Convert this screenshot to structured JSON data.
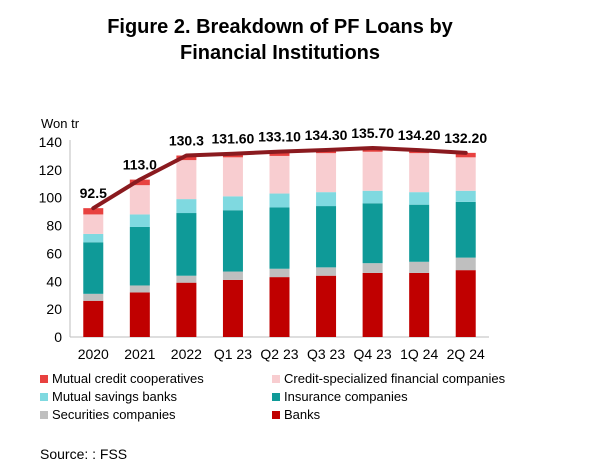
{
  "figure": {
    "title_line1": "Figure 2. Breakdown of PF Loans by",
    "title_line2": "Financial Institutions",
    "source": "Source: : FSS"
  },
  "colors": {
    "mutual_credit": "#e8413f",
    "credit_specialized": "#f8cdd0",
    "mutual_savings": "#7fd9e0",
    "insurance": "#0f9a98",
    "securities": "#bfbfbf",
    "banks": "#c00000",
    "total_line": "#8a1a1f"
  },
  "chart_data": {
    "type": "bar",
    "stacked": true,
    "ylabel": "Won tr",
    "ylim": [
      0,
      140
    ],
    "yticks": [
      0,
      20,
      40,
      60,
      80,
      100,
      120,
      140
    ],
    "categories": [
      "2020",
      "2021",
      "2022",
      "Q1 23",
      "Q2 23",
      "Q3 23",
      "Q4 23",
      "1Q 24",
      "2Q 24"
    ],
    "series": [
      {
        "name": "Banks",
        "key": "banks",
        "values": [
          26,
          32,
          39,
          41,
          43,
          44,
          46,
          46,
          48
        ]
      },
      {
        "name": "Securities companies",
        "key": "securities",
        "values": [
          5,
          5,
          5,
          6,
          6,
          6,
          7,
          8,
          9
        ]
      },
      {
        "name": "Insurance companies",
        "key": "insurance",
        "values": [
          37,
          42,
          45,
          44,
          44,
          44,
          43,
          41,
          40
        ]
      },
      {
        "name": "Mutual savings banks",
        "key": "mutual_savings",
        "values": [
          6,
          9,
          10,
          10,
          10,
          10,
          9,
          9,
          8
        ]
      },
      {
        "name": "Credit-specialized financial companies",
        "key": "credit_specialized",
        "values": [
          14,
          21,
          28,
          28,
          27,
          28,
          28,
          28,
          24
        ]
      },
      {
        "name": "Mutual credit cooperatives",
        "key": "mutual_credit",
        "values": [
          4.5,
          4,
          3.3,
          2.6,
          3.1,
          2.3,
          2.7,
          2.2,
          3.2
        ]
      }
    ],
    "totals": {
      "values": [
        92.5,
        113.0,
        130.3,
        131.6,
        133.1,
        134.3,
        135.7,
        134.2,
        132.2
      ],
      "labels": [
        "92.5",
        "113.0",
        "130.3",
        "131.60",
        "133.10",
        "134.30",
        "135.70",
        "134.20",
        "132.20"
      ]
    },
    "legend": {
      "placement": "bottom",
      "items": [
        {
          "label": "Mutual credit cooperatives",
          "key": "mutual_credit"
        },
        {
          "label": "Credit-specialized financial companies",
          "key": "credit_specialized"
        },
        {
          "label": "Mutual savings banks",
          "key": "mutual_savings"
        },
        {
          "label": "Insurance companies",
          "key": "insurance"
        },
        {
          "label": "Securities companies",
          "key": "securities"
        },
        {
          "label": "Banks",
          "key": "banks"
        }
      ]
    }
  }
}
